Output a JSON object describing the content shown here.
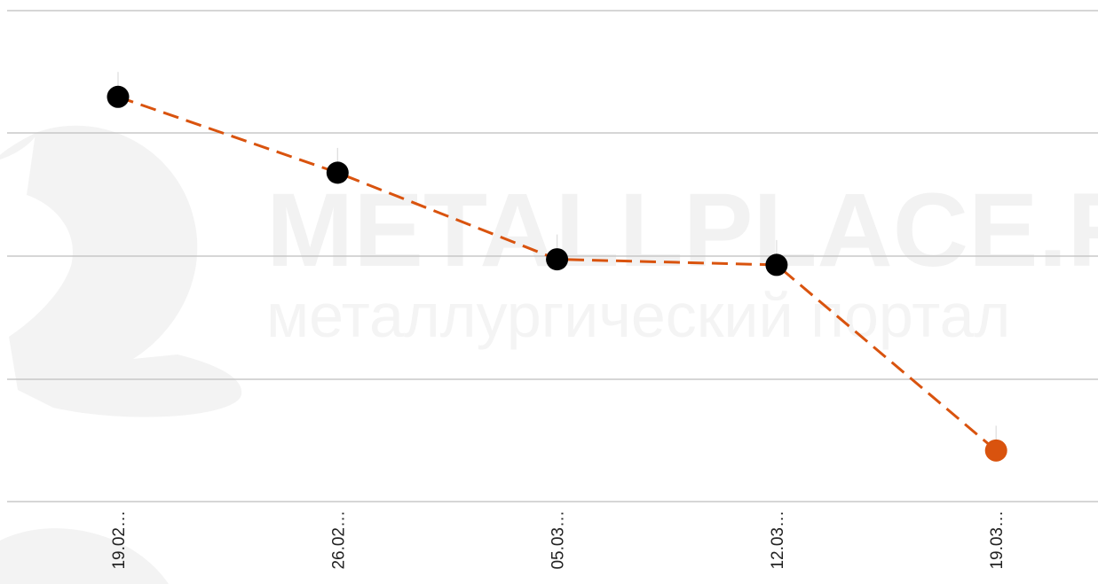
{
  "chart_data": {
    "type": "line",
    "categories": [
      "19.02…",
      "26.02…",
      "05.03…",
      "12.03…",
      "19.03…"
    ],
    "values": [
      98.4,
      79.4,
      57.7,
      56.3,
      9.8
    ],
    "ylim": [
      -3,
      120
    ],
    "grid": true,
    "gridlines": [
      120,
      90,
      60,
      30,
      0
    ],
    "title": "",
    "xlabel": "",
    "ylabel": "",
    "colors": {
      "line": "#d9530e",
      "point": "#000000",
      "last_point": "#d9530e",
      "grid": "#c8c8c8"
    }
  },
  "watermark": {
    "brand": "METALLPLACE.RU",
    "tagline": "металлургический портал",
    "icon": "ladle-icon"
  }
}
